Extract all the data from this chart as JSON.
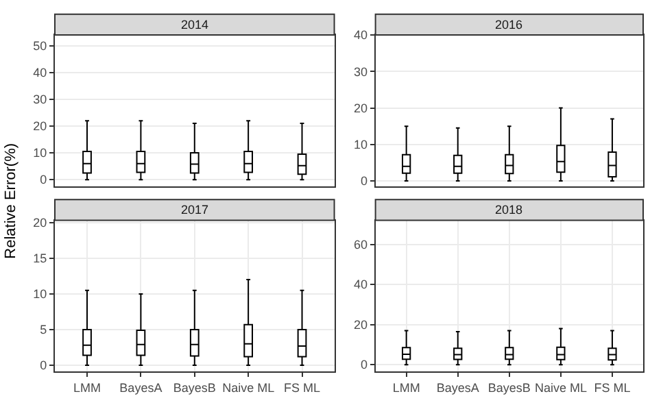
{
  "chart_data": [
    {
      "type": "box",
      "title": "2014",
      "ylabel": "Relative Error(%)",
      "categories": [
        null,
        null,
        null,
        null,
        null
      ],
      "ylim": [
        -2.5,
        54
      ],
      "yticks": [
        0,
        10,
        20,
        30,
        40,
        50
      ],
      "grid": true,
      "tick_labels": "y",
      "color": "#000000",
      "boxes": [
        {
          "low": 0,
          "q1": 2.5,
          "median": 6,
          "q3": 10.5,
          "high": 22
        },
        {
          "low": 0,
          "q1": 2.7,
          "median": 6,
          "q3": 10.5,
          "high": 22
        },
        {
          "low": 0,
          "q1": 2.5,
          "median": 5.8,
          "q3": 10,
          "high": 21
        },
        {
          "low": 0,
          "q1": 2.7,
          "median": 6,
          "q3": 10.5,
          "high": 22
        },
        {
          "low": 0,
          "q1": 2,
          "median": 5.2,
          "q3": 9.5,
          "high": 21
        }
      ]
    },
    {
      "type": "box",
      "title": "2016",
      "categories": [
        null,
        null,
        null,
        null,
        null
      ],
      "ylim": [
        -1.5,
        40
      ],
      "yticks": [
        0,
        10,
        20,
        30,
        40
      ],
      "grid": true,
      "tick_labels": "y",
      "color": "#000000",
      "boxes": [
        {
          "low": 0,
          "q1": 2.1,
          "median": 4,
          "q3": 7.2,
          "high": 15
        },
        {
          "low": 0,
          "q1": 2.1,
          "median": 4,
          "q3": 7,
          "high": 14.5
        },
        {
          "low": 0,
          "q1": 2,
          "median": 4.2,
          "q3": 7.2,
          "high": 15
        },
        {
          "low": 0,
          "q1": 2.4,
          "median": 5.3,
          "q3": 9.7,
          "high": 20
        },
        {
          "low": 0,
          "q1": 1.1,
          "median": 4.2,
          "q3": 7.9,
          "high": 17
        }
      ]
    },
    {
      "type": "box",
      "title": "2017",
      "categories": [
        "LMM",
        "BayesA",
        "BayesB",
        "Naive ML",
        "FS ML"
      ],
      "ylim": [
        -0.9,
        20.3
      ],
      "yticks": [
        0,
        5,
        10,
        15,
        20
      ],
      "grid": true,
      "color": "#000000",
      "boxes": [
        {
          "low": 0,
          "q1": 1.4,
          "median": 2.8,
          "q3": 5,
          "high": 10.5
        },
        {
          "low": 0,
          "q1": 1.4,
          "median": 2.9,
          "q3": 4.9,
          "high": 10
        },
        {
          "low": 0,
          "q1": 1.3,
          "median": 2.9,
          "q3": 5,
          "high": 10.5
        },
        {
          "low": 0,
          "q1": 1.2,
          "median": 3,
          "q3": 5.7,
          "high": 12
        },
        {
          "low": 0,
          "q1": 1.2,
          "median": 2.7,
          "q3": 5,
          "high": 10.5
        }
      ]
    },
    {
      "type": "box",
      "title": "2018",
      "categories": [
        "LMM",
        "BayesA",
        "BayesB",
        "Naive ML",
        "FS ML"
      ],
      "ylim": [
        -3.5,
        72
      ],
      "yticks": [
        0,
        20,
        40,
        60
      ],
      "grid": true,
      "color": "#000000",
      "boxes": [
        {
          "low": 0,
          "q1": 2.7,
          "median": 5.2,
          "q3": 8.5,
          "high": 17
        },
        {
          "low": 0,
          "q1": 2.6,
          "median": 5,
          "q3": 8.2,
          "high": 16.5
        },
        {
          "low": 0,
          "q1": 2.7,
          "median": 5,
          "q3": 8.5,
          "high": 17
        },
        {
          "low": 0,
          "q1": 2.5,
          "median": 5,
          "q3": 8.7,
          "high": 18
        },
        {
          "low": 0,
          "q1": 2.4,
          "median": 5,
          "q3": 8.2,
          "high": 17
        }
      ]
    }
  ]
}
